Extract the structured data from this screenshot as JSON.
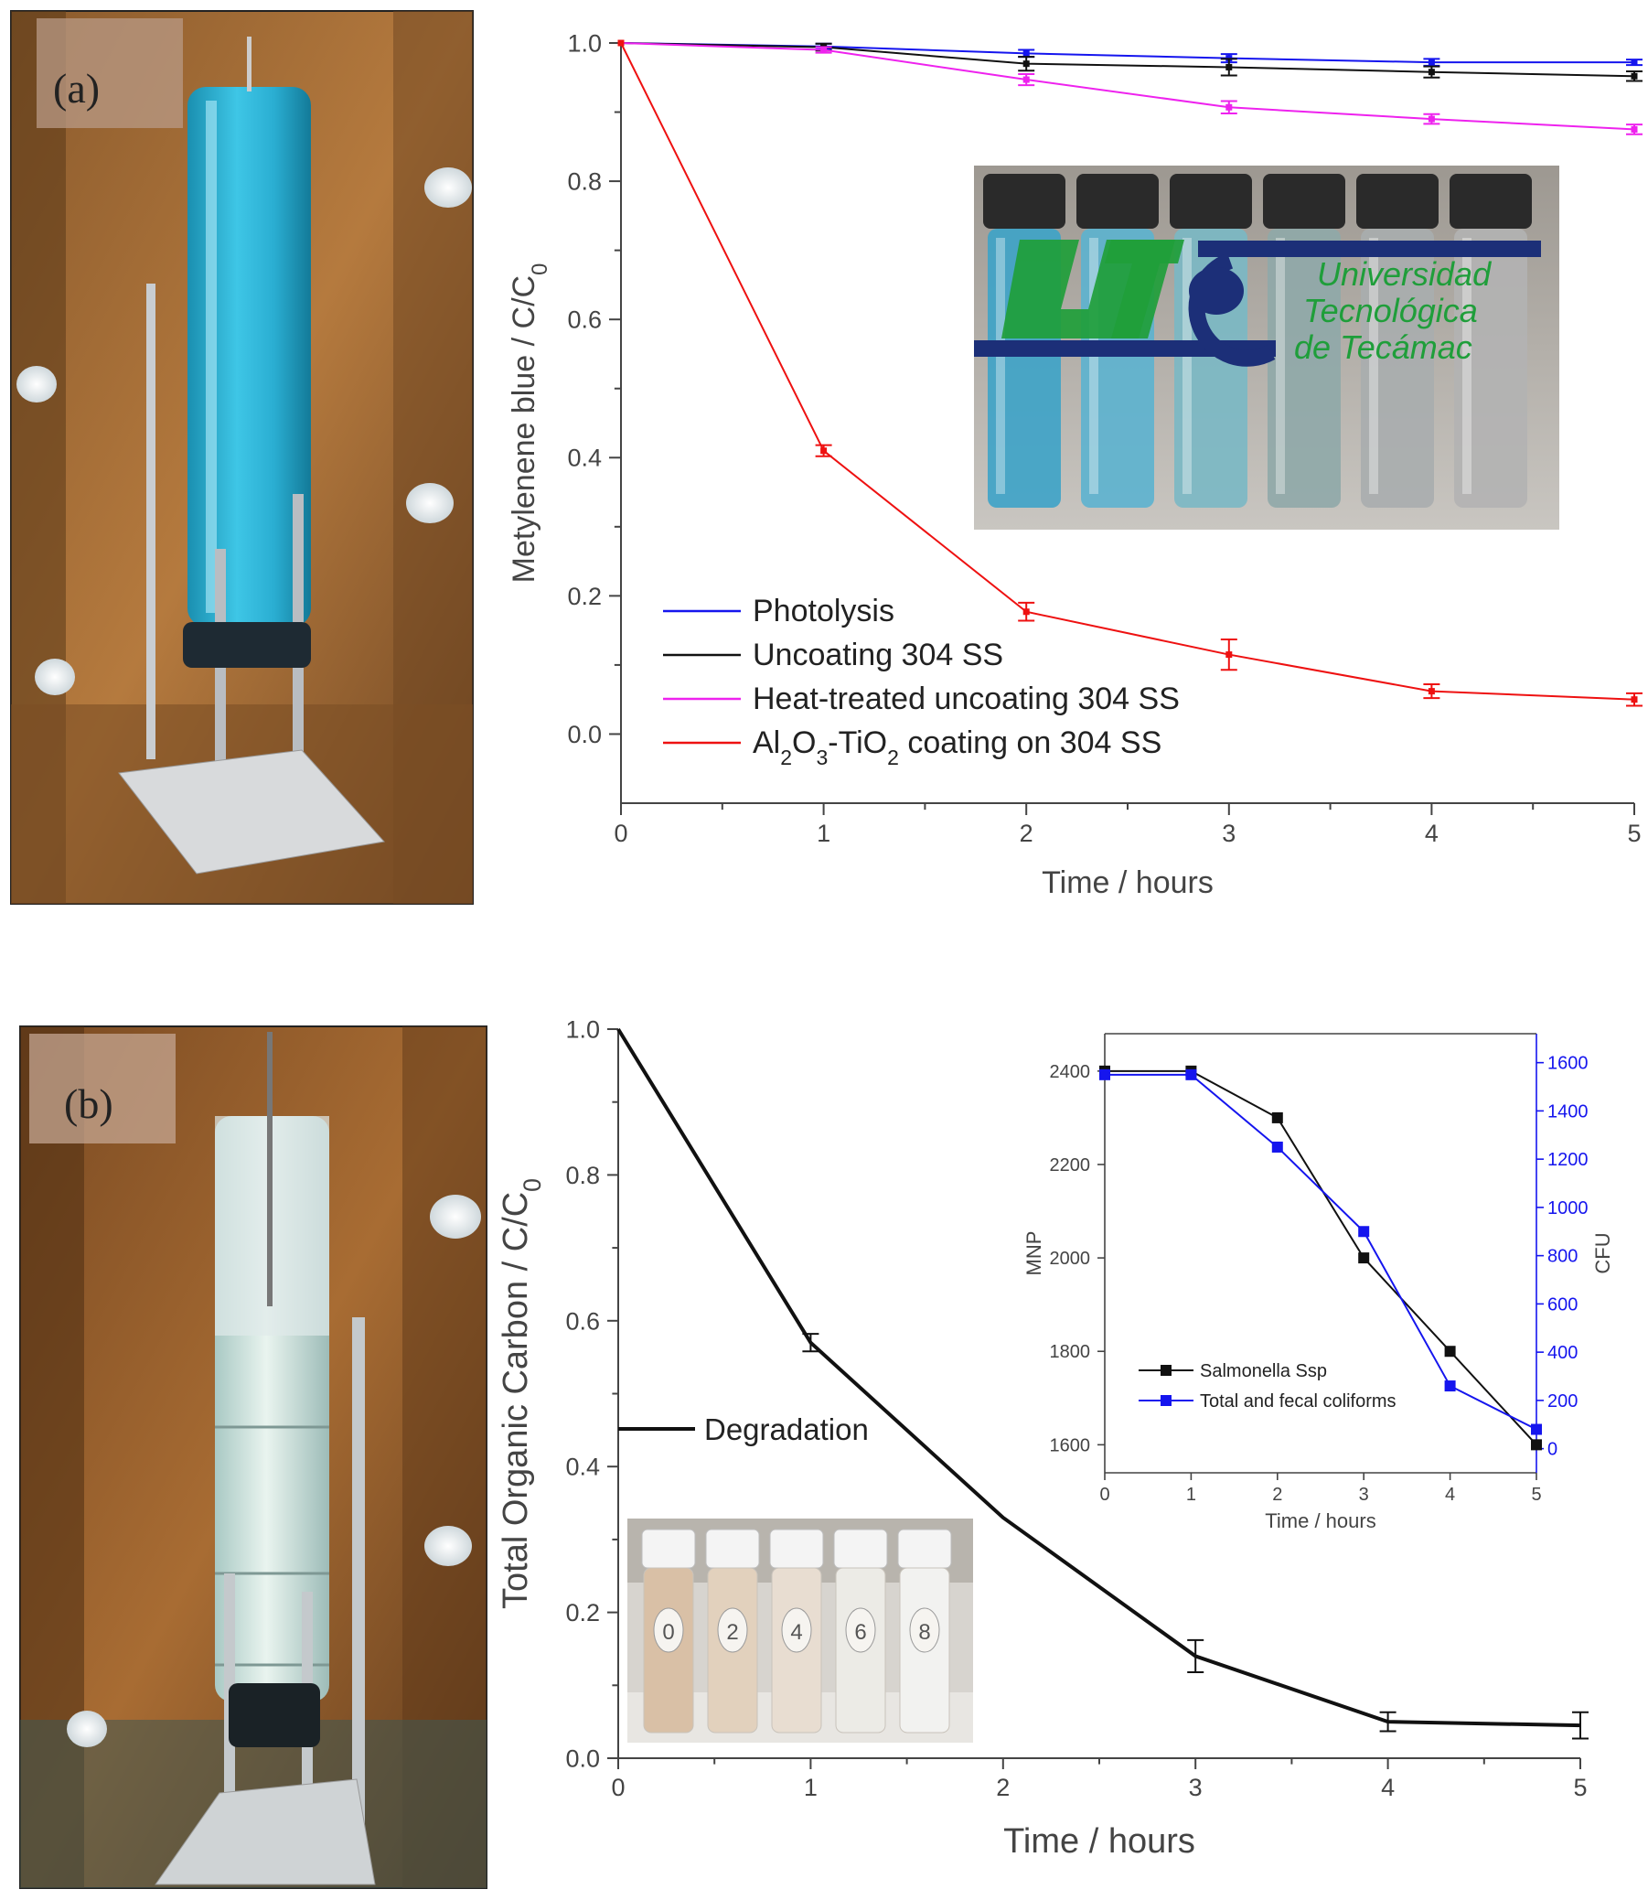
{
  "panels": {
    "a": {
      "label": "(a)"
    },
    "b": {
      "label": "(b)"
    }
  },
  "logo": {
    "lines": [
      "Universidad",
      "Tecnológica",
      "de Tecámac"
    ],
    "mark": "UT"
  },
  "vial_labels": [
    "0",
    "2",
    "4",
    "6",
    "8"
  ],
  "colors": {
    "blue": "#1515ee",
    "black": "#111111",
    "magenta": "#ee22ee",
    "red": "#ee1111",
    "logo_green": "#1f9e3a",
    "logo_navy": "#1c2f78"
  },
  "chart_data": [
    {
      "type": "line",
      "xlabel": "Time / hours",
      "ylabel": "Metylenene blue / C/C",
      "ylabel_sub": "0",
      "xlim": [
        0,
        5
      ],
      "ylim": [
        -0.1,
        1.0
      ],
      "xticks": [
        "0",
        "1",
        "2",
        "3",
        "4",
        "5"
      ],
      "yticks": [
        "0.0",
        "0.2",
        "0.4",
        "0.6",
        "0.8",
        "1.0"
      ],
      "legend_position": "bottom-left",
      "x": [
        0,
        1,
        2,
        3,
        4,
        5
      ],
      "series": [
        {
          "name": "Photolysis",
          "color": "#1515ee",
          "values": [
            1.0,
            0.995,
            0.985,
            0.978,
            0.972,
            0.972
          ],
          "errors": [
            0,
            0.004,
            0.005,
            0.006,
            0.005,
            0.004
          ]
        },
        {
          "name": "Uncoating 304 SS",
          "color": "#111111",
          "values": [
            1.0,
            0.994,
            0.97,
            0.965,
            0.958,
            0.952
          ],
          "errors": [
            0,
            0.005,
            0.01,
            0.012,
            0.008,
            0.007
          ]
        },
        {
          "name": "Heat-treated uncoating 304 SS",
          "color": "#ee22ee",
          "values": [
            1.0,
            0.99,
            0.947,
            0.907,
            0.89,
            0.875
          ],
          "errors": [
            0,
            0.004,
            0.008,
            0.009,
            0.007,
            0.007
          ]
        },
        {
          "name": "Al2O3-TiO2 coating on 304 SS",
          "color": "#ee1111",
          "name_parts": {
            "a": "Al",
            "b": "2",
            "c": "O",
            "d": "3",
            "e": "-TiO",
            "f": "2",
            "g": " coating on 304 SS"
          },
          "values": [
            1.0,
            0.41,
            0.177,
            0.115,
            0.062,
            0.05
          ],
          "errors": [
            0,
            0.008,
            0.013,
            0.022,
            0.01,
            0.009
          ]
        }
      ]
    },
    {
      "type": "line",
      "xlabel": "Time / hours",
      "ylabel": "Total Organic Carbon / C/C",
      "ylabel_sub": "0",
      "xlim": [
        0,
        5
      ],
      "ylim": [
        0.0,
        1.0
      ],
      "xticks": [
        "0",
        "1",
        "2",
        "3",
        "4",
        "5"
      ],
      "yticks": [
        "0.0",
        "0.2",
        "0.4",
        "0.6",
        "0.8",
        "1.0"
      ],
      "legend_position": "middle-left",
      "x": [
        0,
        1,
        2,
        3,
        4,
        5
      ],
      "series": [
        {
          "name": "Degradation",
          "color": "#111111",
          "values": [
            1.0,
            0.57,
            0.33,
            0.14,
            0.05,
            0.045
          ],
          "errors": [
            0,
            0.012,
            0,
            0.022,
            0.013,
            0.018
          ]
        }
      ]
    },
    {
      "type": "line",
      "xlabel": "Time / hours",
      "ylabel": "MNP",
      "y2label": "CFU",
      "xlim": [
        0,
        5
      ],
      "ylim": [
        1540,
        2480
      ],
      "y2lim": [
        -100,
        1720
      ],
      "xticks": [
        "0",
        "1",
        "2",
        "3",
        "4",
        "5"
      ],
      "yticks": [
        "1600",
        "1800",
        "2000",
        "2200",
        "2400"
      ],
      "y2ticks": [
        "0",
        "200",
        "400",
        "600",
        "800",
        "1000",
        "1200",
        "1400",
        "1600"
      ],
      "legend_position": "bottom-left",
      "x": [
        0,
        1,
        2,
        3,
        4,
        5
      ],
      "series": [
        {
          "name": "Salmonella Ssp",
          "color": "#111111",
          "axis": "left",
          "values": [
            2400,
            2400,
            2300,
            2000,
            1800,
            1600
          ]
        },
        {
          "name": "Total and fecal coliforms",
          "color": "#1515ee",
          "axis": "right",
          "values": [
            1550,
            1550,
            1250,
            900,
            260,
            80
          ]
        }
      ]
    }
  ]
}
